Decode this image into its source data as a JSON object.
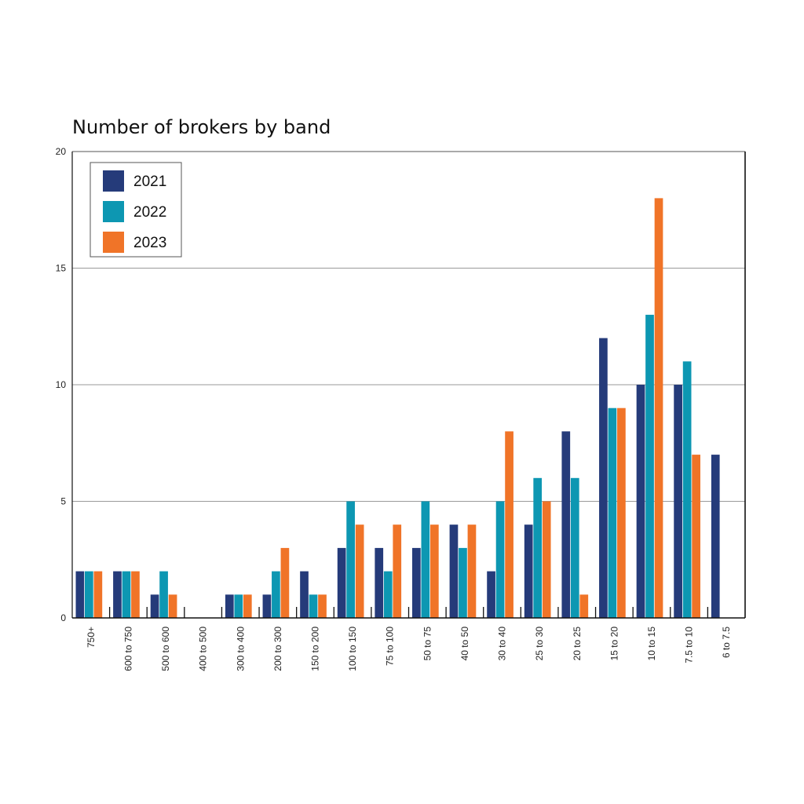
{
  "chart_data": {
    "type": "bar",
    "title": "Number of brokers by band",
    "xlabel": "",
    "ylabel": "",
    "ylim": [
      0,
      20
    ],
    "yticks": [
      0,
      5,
      10,
      15,
      20
    ],
    "grid": true,
    "legend_position": "top-left",
    "categories": [
      "750+",
      "600 to 750",
      "500 to 600",
      "400 to 500",
      "300 to 400",
      "200 to 300",
      "150 to 200",
      "100 to 150",
      "75 to 100",
      "50 to 75",
      "40 to 50",
      "30 to 40",
      "25 to 30",
      "20 to 25",
      "15 to 20",
      "10 to 15",
      "7.5 to 10",
      "6 to 7.5"
    ],
    "series": [
      {
        "name": "2021",
        "color": "#253b7a",
        "values": [
          2,
          2,
          1,
          0,
          1,
          1,
          2,
          3,
          3,
          3,
          4,
          2,
          4,
          8,
          12,
          10,
          10,
          7
        ]
      },
      {
        "name": "2022",
        "color": "#0d97b2",
        "values": [
          2,
          2,
          2,
          0,
          1,
          2,
          1,
          5,
          2,
          5,
          3,
          5,
          6,
          6,
          9,
          13,
          11,
          0
        ]
      },
      {
        "name": "2023",
        "color": "#f07428",
        "values": [
          2,
          2,
          1,
          0,
          1,
          3,
          1,
          4,
          4,
          4,
          4,
          8,
          5,
          1,
          9,
          18,
          7,
          0
        ]
      }
    ]
  }
}
